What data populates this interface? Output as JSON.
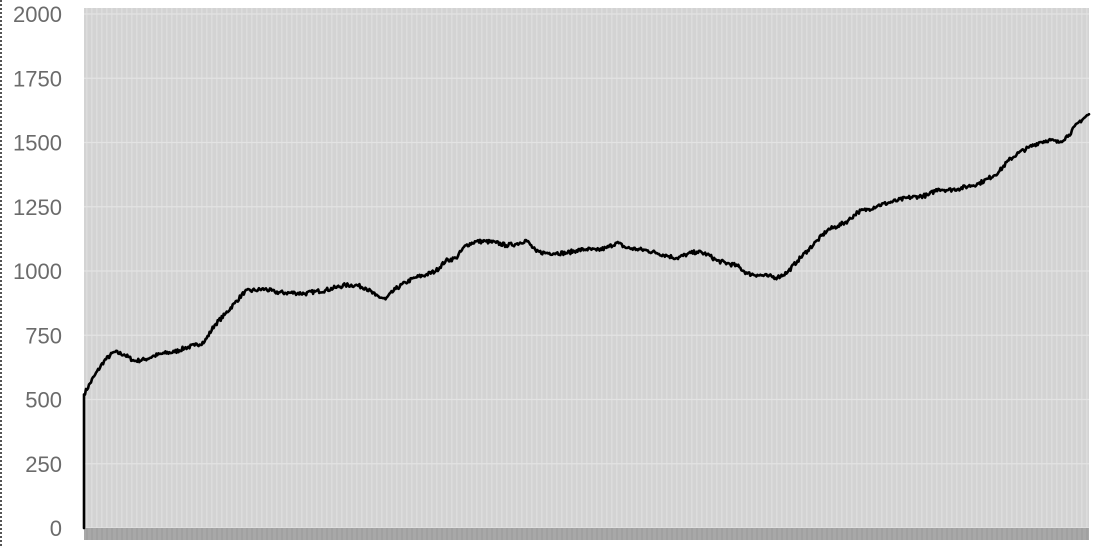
{
  "chart_data": {
    "type": "line",
    "title": "",
    "xlabel": "",
    "ylabel": "",
    "ylim": [
      0,
      2000
    ],
    "yticks": [
      "0",
      "250",
      "500",
      "750",
      "1000",
      "1250",
      "1500",
      "1750",
      "2000"
    ],
    "grid": true,
    "legend": "none",
    "colors": {
      "plot_background": "#d3d3d3",
      "gridline": "#e3e3e3",
      "minor_band": "#dcdcdc",
      "x_tick_strip": "#a8a8a8",
      "line": "#000000"
    },
    "x_range": [
      0,
      100
    ],
    "series": [
      {
        "values": [
          [
            0,
            0
          ],
          [
            0,
            520
          ],
          [
            1,
            590
          ],
          [
            2,
            650
          ],
          [
            3,
            685
          ],
          [
            4,
            675
          ],
          [
            5,
            650
          ],
          [
            6,
            655
          ],
          [
            7,
            670
          ],
          [
            8,
            680
          ],
          [
            9,
            685
          ],
          [
            10,
            700
          ],
          [
            11,
            710
          ],
          [
            12,
            725
          ],
          [
            13,
            790
          ],
          [
            14,
            830
          ],
          [
            15,
            875
          ],
          [
            16,
            920
          ],
          [
            17,
            925
          ],
          [
            18,
            930
          ],
          [
            19,
            918
          ],
          [
            20,
            915
          ],
          [
            21,
            915
          ],
          [
            22,
            912
          ],
          [
            23,
            920
          ],
          [
            24,
            925
          ],
          [
            25,
            935
          ],
          [
            26,
            945
          ],
          [
            27,
            945
          ],
          [
            28,
            935
          ],
          [
            29,
            905
          ],
          [
            30,
            890
          ],
          [
            31,
            930
          ],
          [
            32,
            955
          ],
          [
            33,
            975
          ],
          [
            34,
            985
          ],
          [
            35,
            1000
          ],
          [
            36,
            1040
          ],
          [
            37,
            1050
          ],
          [
            38,
            1100
          ],
          [
            39,
            1115
          ],
          [
            40,
            1115
          ],
          [
            41,
            1110
          ],
          [
            42,
            1100
          ],
          [
            43,
            1105
          ],
          [
            44,
            1120
          ],
          [
            45,
            1075
          ],
          [
            46,
            1070
          ],
          [
            47,
            1070
          ],
          [
            48,
            1070
          ],
          [
            49,
            1080
          ],
          [
            50,
            1085
          ],
          [
            51,
            1080
          ],
          [
            52,
            1090
          ],
          [
            53,
            1110
          ],
          [
            54,
            1090
          ],
          [
            55,
            1085
          ],
          [
            56,
            1080
          ],
          [
            57,
            1070
          ],
          [
            58,
            1060
          ],
          [
            59,
            1050
          ],
          [
            60,
            1065
          ],
          [
            61,
            1075
          ],
          [
            62,
            1065
          ],
          [
            63,
            1040
          ],
          [
            64,
            1030
          ],
          [
            65,
            1020
          ],
          [
            66,
            990
          ],
          [
            67,
            985
          ],
          [
            68,
            980
          ],
          [
            69,
            975
          ],
          [
            70,
            995
          ],
          [
            71,
            1040
          ],
          [
            72,
            1080
          ],
          [
            73,
            1120
          ],
          [
            74,
            1160
          ],
          [
            75,
            1175
          ],
          [
            76,
            1195
          ],
          [
            77,
            1230
          ],
          [
            78,
            1240
          ],
          [
            79,
            1255
          ],
          [
            80,
            1265
          ],
          [
            81,
            1275
          ],
          [
            82,
            1285
          ],
          [
            83,
            1290
          ],
          [
            84,
            1295
          ],
          [
            85,
            1320
          ],
          [
            86,
            1315
          ],
          [
            87,
            1320
          ],
          [
            88,
            1330
          ],
          [
            89,
            1340
          ],
          [
            90,
            1360
          ],
          [
            91,
            1385
          ],
          [
            92,
            1430
          ],
          [
            93,
            1460
          ],
          [
            94,
            1480
          ],
          [
            95,
            1500
          ],
          [
            96,
            1510
          ],
          [
            97,
            1500
          ],
          [
            98,
            1530
          ],
          [
            99,
            1580
          ],
          [
            100,
            1610
          ]
        ]
      }
    ]
  }
}
